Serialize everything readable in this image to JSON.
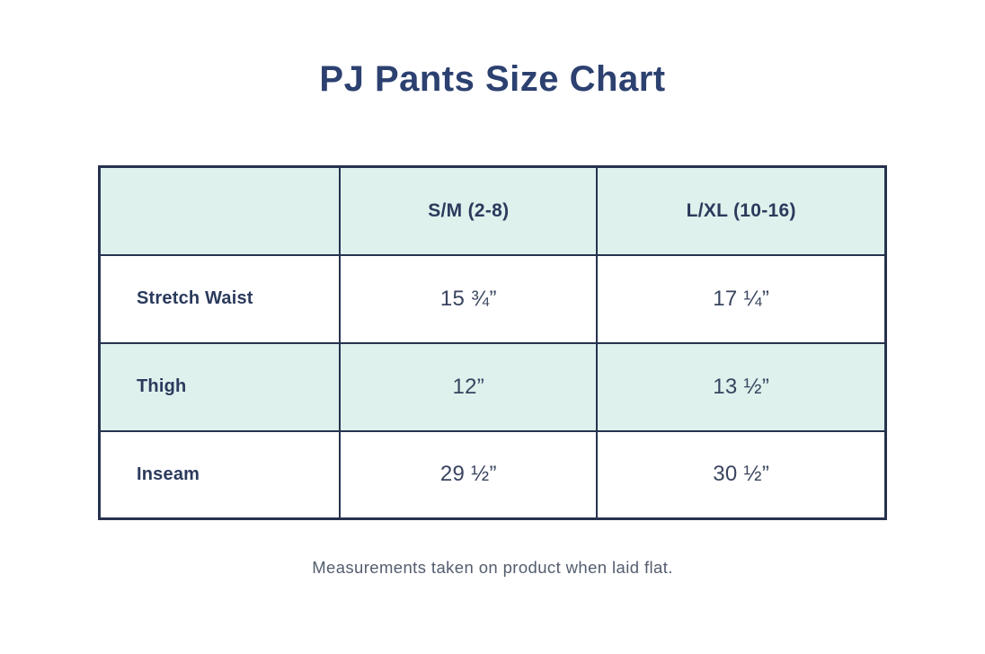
{
  "page": {
    "title": "PJ Pants Size Chart",
    "footnote": "Measurements taken on product when laid flat."
  },
  "chart_data": {
    "type": "table",
    "title": "PJ Pants Size Chart",
    "columns": [
      "",
      "S/M (2-8)",
      "L/XL (10-16)"
    ],
    "rows": [
      {
        "label": "Stretch Waist",
        "values": [
          "15 ¾”",
          "17 ¼”"
        ]
      },
      {
        "label": "Thigh",
        "values": [
          "12”",
          "13 ½”"
        ]
      },
      {
        "label": "Inseam",
        "values": [
          "29 ½”",
          "30 ½”"
        ]
      }
    ],
    "footnote": "Measurements taken on product when laid flat.",
    "layout": {
      "highlighted_rows": [
        "header",
        "Thigh"
      ],
      "row_label_alignment": "left",
      "value_alignment": "center"
    },
    "colors": {
      "title_text": "#2c4170",
      "table_text": "#2b3a5c",
      "value_text": "#39445f",
      "border": "#27324f",
      "row_highlight": "#def1ed",
      "footnote_text": "#535d6e",
      "background": "#ffffff"
    }
  }
}
